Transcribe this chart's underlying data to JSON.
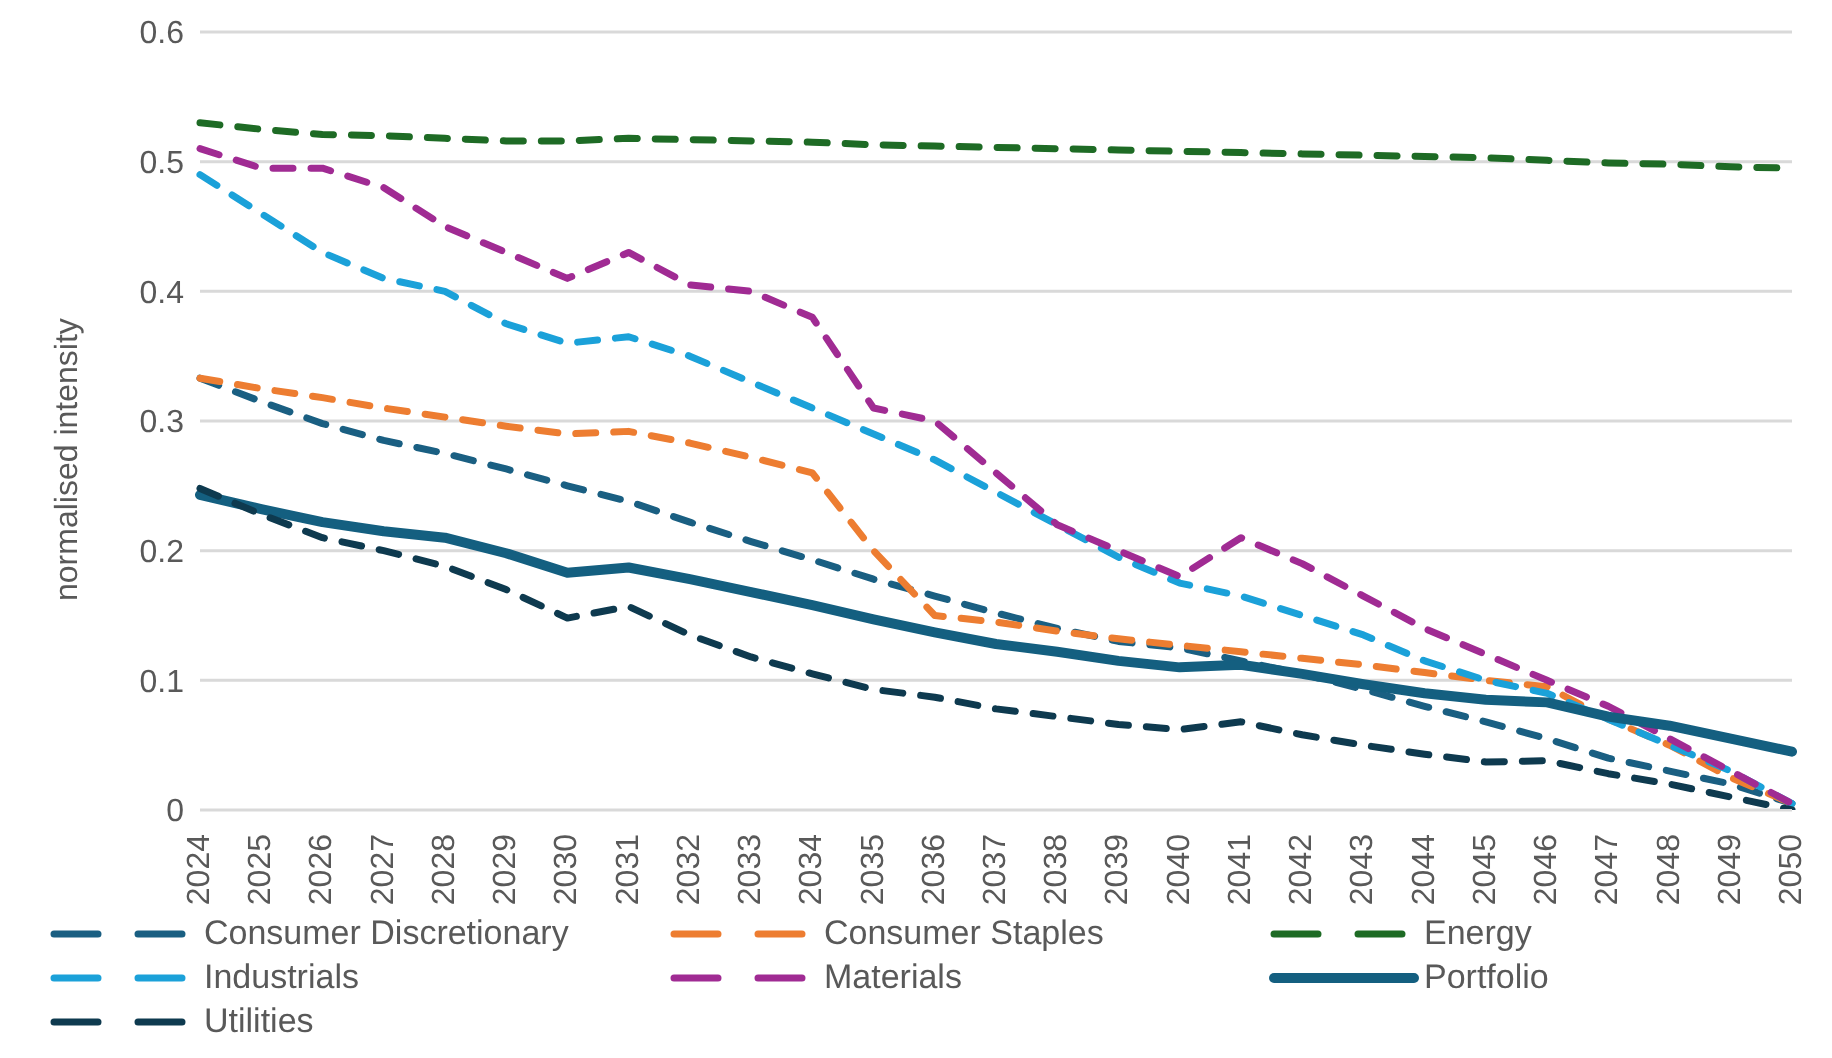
{
  "chart_data": {
    "type": "line",
    "ylabel": "normalised intensity",
    "categories": [
      "2024",
      "2025",
      "2026",
      "2027",
      "2028",
      "2029",
      "2030",
      "2031",
      "2032",
      "2033",
      "2034",
      "2035",
      "2036",
      "2037",
      "2038",
      "2039",
      "2040",
      "2041",
      "2042",
      "2043",
      "2044",
      "2045",
      "2046",
      "2047",
      "2048",
      "2049",
      "2050"
    ],
    "ylim": [
      0,
      0.6
    ],
    "yticks": [
      0,
      0.1,
      0.2,
      0.3,
      0.4,
      0.5,
      0.6
    ],
    "grid": "y",
    "legend": "bottom",
    "series": [
      {
        "name": "Consumer Discretionary",
        "color": "#1a5f82",
        "line_style": "dashed",
        "values": [
          0.333,
          0.315,
          0.298,
          0.285,
          0.275,
          0.263,
          0.25,
          0.238,
          0.222,
          0.207,
          0.193,
          0.178,
          0.165,
          0.152,
          0.14,
          0.13,
          0.125,
          0.115,
          0.105,
          0.093,
          0.08,
          0.068,
          0.055,
          0.04,
          0.03,
          0.02,
          0.005
        ]
      },
      {
        "name": "Consumer Staples",
        "color": "#ed7d31",
        "line_style": "dashed",
        "values": [
          0.333,
          0.325,
          0.318,
          0.31,
          0.303,
          0.296,
          0.29,
          0.292,
          0.283,
          0.272,
          0.26,
          0.2,
          0.15,
          0.145,
          0.138,
          0.132,
          0.127,
          0.122,
          0.117,
          0.112,
          0.106,
          0.1,
          0.095,
          0.07,
          0.05,
          0.025,
          0.005
        ]
      },
      {
        "name": "Energy",
        "color": "#1e6b25",
        "line_style": "dashed",
        "values": [
          0.53,
          0.525,
          0.521,
          0.52,
          0.518,
          0.516,
          0.516,
          0.518,
          0.517,
          0.516,
          0.515,
          0.513,
          0.512,
          0.511,
          0.51,
          0.509,
          0.508,
          0.507,
          0.506,
          0.505,
          0.504,
          0.503,
          0.501,
          0.499,
          0.498,
          0.496,
          0.495
        ]
      },
      {
        "name": "Industrials",
        "color": "#1ba1d9",
        "line_style": "dashed",
        "values": [
          0.49,
          0.46,
          0.43,
          0.41,
          0.4,
          0.375,
          0.36,
          0.365,
          0.35,
          0.33,
          0.31,
          0.29,
          0.27,
          0.245,
          0.22,
          0.195,
          0.175,
          0.165,
          0.15,
          0.135,
          0.115,
          0.1,
          0.09,
          0.07,
          0.05,
          0.03,
          0.005
        ]
      },
      {
        "name": "Materials",
        "color": "#a02b93",
        "line_style": "dashed",
        "values": [
          0.51,
          0.495,
          0.495,
          0.48,
          0.45,
          0.43,
          0.41,
          0.43,
          0.405,
          0.4,
          0.38,
          0.31,
          0.3,
          0.26,
          0.22,
          0.2,
          0.18,
          0.21,
          0.19,
          0.165,
          0.14,
          0.12,
          0.1,
          0.08,
          0.055,
          0.03,
          0.005
        ]
      },
      {
        "name": "Portfolio",
        "color": "#145f80",
        "line_style": "solid",
        "values": [
          0.243,
          0.232,
          0.222,
          0.215,
          0.21,
          0.198,
          0.183,
          0.187,
          0.178,
          0.168,
          0.158,
          0.147,
          0.137,
          0.128,
          0.122,
          0.115,
          0.11,
          0.112,
          0.105,
          0.097,
          0.09,
          0.085,
          0.083,
          0.072,
          0.065,
          0.055,
          0.045
        ]
      },
      {
        "name": "Utilities",
        "color": "#0e3a4f",
        "line_style": "dashed",
        "values": [
          0.248,
          0.228,
          0.21,
          0.2,
          0.188,
          0.17,
          0.148,
          0.157,
          0.135,
          0.118,
          0.105,
          0.093,
          0.087,
          0.078,
          0.072,
          0.066,
          0.062,
          0.068,
          0.058,
          0.05,
          0.043,
          0.037,
          0.038,
          0.028,
          0.02,
          0.01,
          0
        ]
      }
    ]
  }
}
